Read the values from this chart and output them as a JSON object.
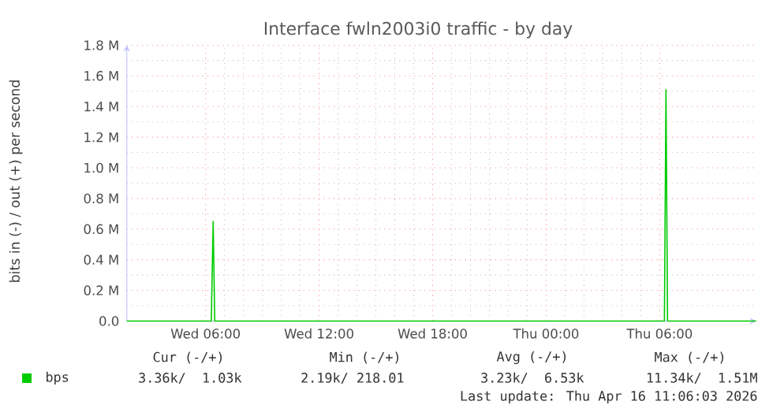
{
  "chart_data": {
    "type": "line",
    "title": "Interface fwln2003i0 traffic - by day",
    "ylabel": "bits in (-) / out (+) per second",
    "x": [
      "2026-04-15T01:50",
      "2026-04-15T06:18",
      "2026-04-15T06:24",
      "2026-04-15T06:29",
      "2026-04-16T06:15",
      "2026-04-16T06:20",
      "2026-04-16T06:25",
      "2026-04-16T11:06"
    ],
    "series": [
      {
        "name": "bps",
        "color": "#00cc00",
        "values": [
          0,
          0,
          0.65,
          0,
          0,
          1.51,
          0,
          0
        ]
      }
    ],
    "xlim": [
      "2026-04-15T01:50",
      "2026-04-16T11:06"
    ],
    "xticks": [
      {
        "value": "2026-04-15T06:00",
        "label": "Wed 06:00"
      },
      {
        "value": "2026-04-15T12:00",
        "label": "Wed 12:00"
      },
      {
        "value": "2026-04-15T18:00",
        "label": "Wed 18:00"
      },
      {
        "value": "2026-04-16T00:00",
        "label": "Thu 00:00"
      },
      {
        "value": "2026-04-16T06:00",
        "label": "Thu 06:00"
      }
    ],
    "ylim": [
      0,
      1.8
    ],
    "yticks": [
      {
        "value": 0,
        "label": "0.0"
      },
      {
        "value": 0.2,
        "label": "0.2 M"
      },
      {
        "value": 0.4,
        "label": "0.4 M"
      },
      {
        "value": 0.6,
        "label": "0.6 M"
      },
      {
        "value": 0.8,
        "label": "0.8 M"
      },
      {
        "value": 1.0,
        "label": "1.0 M"
      },
      {
        "value": 1.2,
        "label": "1.2 M"
      },
      {
        "value": 1.4,
        "label": "1.4 M"
      },
      {
        "value": 1.6,
        "label": "1.6 M"
      },
      {
        "value": 1.8,
        "label": "1.8 M"
      }
    ],
    "grid": true,
    "legend": "bottom",
    "annotations": [
      "Cur (-/+)",
      "Min (-/+)",
      "Avg (-/+)",
      "Max (-/+)",
      "3.36k/  1.03k",
      "2.19k/ 218.01",
      "3.23k/  6.53k",
      "11.34k/  1.51M",
      "Last update: Thu Apr 16 11:06:03 2026"
    ]
  }
}
